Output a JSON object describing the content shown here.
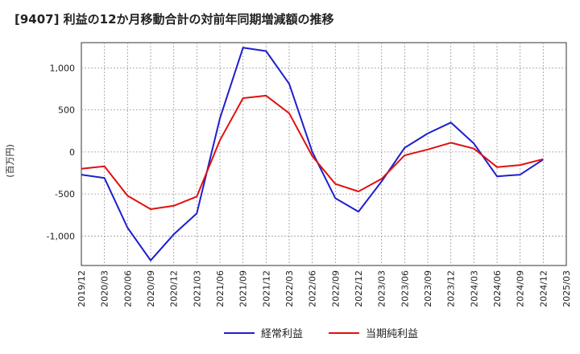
{
  "chart_data": {
    "type": "line",
    "title": "[9407]  利益の12か月移動合計の対前年同期増減額の推移",
    "ylabel": "(百万円)",
    "xlabel": "",
    "ylim": [
      -1350,
      1300
    ],
    "yticks": [
      1000,
      500,
      0,
      -500,
      -1000
    ],
    "ytick_labels": [
      "1,000",
      "500",
      "0",
      "-500",
      "-1,000"
    ],
    "categories": [
      "2019/12",
      "2020/03",
      "2020/06",
      "2020/09",
      "2020/12",
      "2021/03",
      "2021/06",
      "2021/09",
      "2021/12",
      "2022/03",
      "2022/06",
      "2022/09",
      "2022/12",
      "2023/03",
      "2023/06",
      "2023/09",
      "2023/12",
      "2024/03",
      "2024/06",
      "2024/09",
      "2024/12",
      "2025/03"
    ],
    "series": [
      {
        "name": "経常利益",
        "color": "#1f1fcc",
        "values": [
          -270,
          -310,
          -900,
          -1290,
          -980,
          -730,
          400,
          1240,
          1200,
          810,
          0,
          -550,
          -710,
          -350,
          50,
          220,
          350,
          100,
          -290,
          -270,
          -90,
          null
        ]
      },
      {
        "name": "当期純利益",
        "color": "#e01010",
        "values": [
          -200,
          -170,
          -520,
          -680,
          -640,
          -530,
          140,
          640,
          670,
          460,
          -50,
          -380,
          -470,
          -320,
          -40,
          30,
          110,
          40,
          -180,
          -155,
          -85,
          null
        ]
      }
    ],
    "grid": true,
    "legend": "bottom-center"
  }
}
